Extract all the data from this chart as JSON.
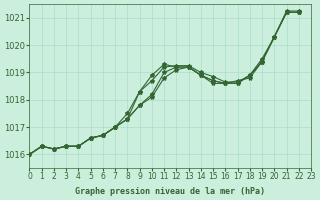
{
  "title": "Graphe pression niveau de la mer (hPa)",
  "background_color": "#cceedd",
  "grid_color": "#aaddcc",
  "line_color": "#336633",
  "marker_color": "#336633",
  "xlim": [
    0,
    23
  ],
  "ylim": [
    1015.5,
    1021.5
  ],
  "yticks": [
    1016,
    1017,
    1018,
    1019,
    1020,
    1021
  ],
  "xticks": [
    0,
    1,
    2,
    3,
    4,
    5,
    6,
    7,
    8,
    9,
    10,
    11,
    12,
    13,
    14,
    15,
    16,
    17,
    18,
    19,
    20,
    21,
    22,
    23
  ],
  "series": [
    [
      1016.0,
      1016.3,
      1016.2,
      1016.3,
      1016.3,
      1016.6,
      1016.7,
      1017.0,
      1017.3,
      1018.3,
      1018.9,
      1019.3,
      1019.2,
      1019.2,
      1018.9,
      1018.7,
      1018.6,
      1018.6,
      1018.9,
      1019.4,
      1020.3,
      1021.2,
      1021.2
    ],
    [
      1016.0,
      1016.3,
      1016.2,
      1016.3,
      1016.3,
      1016.6,
      1016.7,
      1017.0,
      1017.3,
      1017.8,
      1018.2,
      1019.0,
      1019.2,
      1019.2,
      1018.9,
      1018.6,
      1018.6,
      1018.6,
      1018.9,
      1019.4,
      1020.3,
      1021.2,
      1021.2
    ],
    [
      1016.0,
      1016.3,
      1016.2,
      1016.3,
      1016.3,
      1016.6,
      1016.7,
      1017.0,
      1017.3,
      1017.8,
      1018.1,
      1018.8,
      1019.1,
      1019.2,
      1018.9,
      1018.7,
      1018.6,
      1018.7,
      1018.8,
      1019.4,
      1020.3,
      1021.2,
      1021.2
    ],
    [
      1016.0,
      1016.3,
      1016.2,
      1016.3,
      1016.3,
      1016.6,
      1016.7,
      1017.0,
      1017.5,
      1018.3,
      1018.7,
      1019.2,
      1019.25,
      1019.25,
      1019.0,
      1018.85,
      1018.65,
      1018.65,
      1018.9,
      1019.5,
      1020.3,
      1021.25,
      1021.25
    ]
  ],
  "xoffsets": [
    0,
    1,
    2,
    3,
    4,
    5,
    6,
    7,
    8,
    9,
    10,
    11,
    12,
    13,
    14,
    15,
    16,
    17,
    18,
    19,
    20,
    21,
    22
  ]
}
